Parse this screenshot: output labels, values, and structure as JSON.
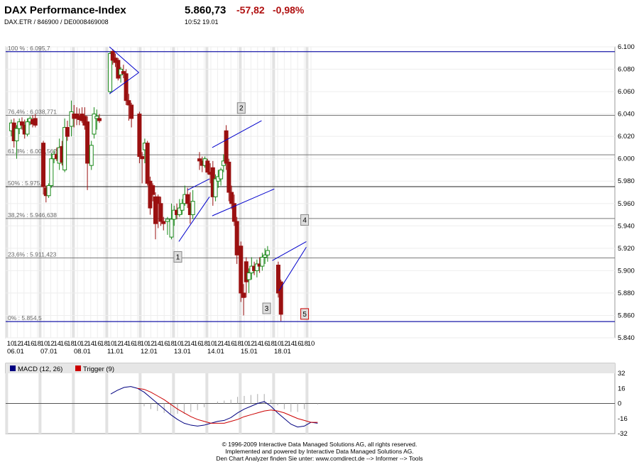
{
  "header": {
    "title": "DAX Performance-Index",
    "subtitle": "DAX.ETR  /  846900  /  DE0008469008",
    "price": "5.860,73",
    "change": "-57,82",
    "change_pct": "-0,98%",
    "time": "10:52   19.01"
  },
  "chart_data": [
    {
      "type": "candlestick",
      "y_ticks": [
        "6.100",
        "6.080",
        "6.060",
        "6.040",
        "6.020",
        "6.000",
        "5.980",
        "5.960",
        "5.940",
        "5.920",
        "5.900",
        "5.880",
        "5.860",
        "5.840"
      ],
      "ylim": [
        5840,
        6100
      ],
      "x_hour_labels": [
        "10",
        "12",
        "14",
        "16",
        "18",
        "10",
        "12",
        "14",
        "16",
        "18",
        "10",
        "12",
        "14",
        "16",
        "18",
        "10",
        "12",
        "14",
        "16",
        "18",
        "10",
        "12",
        "14",
        "16",
        "18",
        "10",
        "12",
        "14",
        "16",
        "18",
        "10",
        "12",
        "14",
        "16",
        "18",
        "10",
        "12",
        "14",
        "16",
        "18",
        "10",
        "12",
        "14",
        "16",
        "18",
        "10"
      ],
      "x_date_labels": [
        {
          "label": "06.01",
          "at": 0
        },
        {
          "label": "07.01",
          "at": 5
        },
        {
          "label": "08.01",
          "at": 10
        },
        {
          "label": "11.01",
          "at": 15
        },
        {
          "label": "12.01",
          "at": 20
        },
        {
          "label": "13.01",
          "at": 25
        },
        {
          "label": "14.01",
          "at": 30
        },
        {
          "label": "15.01",
          "at": 35
        },
        {
          "label": "18.01",
          "at": 40
        }
      ],
      "fib_levels": [
        {
          "label": "100 % : 6.095,7",
          "value": 6095.7
        },
        {
          "label": "76,4% : 6.038,771",
          "value": 6038.771
        },
        {
          "label": "61,8% : 6.003,562",
          "value": 6003.562
        },
        {
          "label": "50% : 5.975,1",
          "value": 5975.1
        },
        {
          "label": "38,2% : 5.946,638",
          "value": 5946.638
        },
        {
          "label": "23,6% : 5.911,423",
          "value": 5911.423
        },
        {
          "label": "0% : 5.854,5",
          "value": 5854.5
        }
      ],
      "markers": [
        {
          "label": "1",
          "x": 25,
          "y": 5912
        },
        {
          "label": "2",
          "x": 34.5,
          "y": 6045
        },
        {
          "label": "3",
          "x": 38.3,
          "y": 5866
        },
        {
          "label": "4",
          "x": 44,
          "y": 5945
        },
        {
          "label": "5",
          "x": 44,
          "y": 5861
        }
      ],
      "trendlines": [
        {
          "x1": 14.8,
          "y1": 6100,
          "x2": 19.2,
          "y2": 6077
        },
        {
          "x1": 14.8,
          "y1": 6058,
          "x2": 19.2,
          "y2": 6077
        },
        {
          "x1": 25.2,
          "y1": 5926,
          "x2": 29.8,
          "y2": 5966
        },
        {
          "x1": 26.5,
          "y1": 5972,
          "x2": 29.8,
          "y2": 5982
        },
        {
          "x1": 30.2,
          "y1": 5949,
          "x2": 39.5,
          "y2": 5973
        },
        {
          "x1": 30.2,
          "y1": 6010,
          "x2": 37.6,
          "y2": 6034
        },
        {
          "x1": 39.2,
          "y1": 5909,
          "x2": 44.3,
          "y2": 5926
        },
        {
          "x1": 40.2,
          "y1": 5882,
          "x2": 44.3,
          "y2": 5921
        }
      ],
      "candles": [
        {
          "x": 0.1,
          "o": 6025,
          "h": 6035,
          "l": 6020,
          "c": 6032
        },
        {
          "x": 0.5,
          "o": 6032,
          "h": 6036,
          "l": 6010,
          "c": 6016
        },
        {
          "x": 0.9,
          "o": 6016,
          "h": 6030,
          "l": 6000,
          "c": 6027
        },
        {
          "x": 1.3,
          "o": 6027,
          "h": 6036,
          "l": 6022,
          "c": 6033
        },
        {
          "x": 1.7,
          "o": 6033,
          "h": 6037,
          "l": 6026,
          "c": 6030
        },
        {
          "x": 2.1,
          "o": 6030,
          "h": 6035,
          "l": 6018,
          "c": 6022
        },
        {
          "x": 2.5,
          "o": 6022,
          "h": 6036,
          "l": 6020,
          "c": 6033
        },
        {
          "x": 2.9,
          "o": 6033,
          "h": 6038,
          "l": 6030,
          "c": 6036
        },
        {
          "x": 3.3,
          "o": 6035,
          "h": 6039,
          "l": 6028,
          "c": 6031
        },
        {
          "x": 3.7,
          "o": 6036,
          "h": 6040,
          "l": 6028,
          "c": 6030
        },
        {
          "x": 4.9,
          "o": 6014,
          "h": 6016,
          "l": 5968,
          "c": 5975
        },
        {
          "x": 5.3,
          "o": 5974,
          "h": 5976,
          "l": 5961,
          "c": 5967
        },
        {
          "x": 5.7,
          "o": 5967,
          "h": 5978,
          "l": 5965,
          "c": 5976
        },
        {
          "x": 6.1,
          "o": 5976,
          "h": 6005,
          "l": 5974,
          "c": 6000
        },
        {
          "x": 6.5,
          "o": 6000,
          "h": 6008,
          "l": 5996,
          "c": 6004
        },
        {
          "x": 6.9,
          "o": 6004,
          "h": 6010,
          "l": 5998,
          "c": 6000
        },
        {
          "x": 7.3,
          "o": 5996,
          "h": 6018,
          "l": 5990,
          "c": 6010
        },
        {
          "x": 7.7,
          "o": 6011,
          "h": 6016,
          "l": 5994,
          "c": 5997
        },
        {
          "x": 8.1,
          "o": 5990,
          "h": 6036,
          "l": 5988,
          "c": 6028
        },
        {
          "x": 8.5,
          "o": 6028,
          "h": 6034,
          "l": 6016,
          "c": 6020
        },
        {
          "x": 9.1,
          "o": 6029,
          "h": 6052,
          "l": 6020,
          "c": 6042
        },
        {
          "x": 9.5,
          "o": 6040,
          "h": 6048,
          "l": 6028,
          "c": 6036
        },
        {
          "x": 9.9,
          "o": 6040,
          "h": 6046,
          "l": 6030,
          "c": 6036
        },
        {
          "x": 10.3,
          "o": 6038,
          "h": 6045,
          "l": 6030,
          "c": 6035
        },
        {
          "x": 10.7,
          "o": 6040,
          "h": 6046,
          "l": 6032,
          "c": 6034
        },
        {
          "x": 11.1,
          "o": 6038,
          "h": 6046,
          "l": 6026,
          "c": 6030
        },
        {
          "x": 11.5,
          "o": 6033,
          "h": 6038,
          "l": 5972,
          "c": 5996
        },
        {
          "x": 12.1,
          "o": 5994,
          "h": 6016,
          "l": 5990,
          "c": 6012
        },
        {
          "x": 12.5,
          "o": 6022,
          "h": 6046,
          "l": 6018,
          "c": 6040
        },
        {
          "x": 12.9,
          "o": 6036,
          "h": 6044,
          "l": 6026,
          "c": 6038
        },
        {
          "x": 13.3,
          "o": 6036,
          "h": 6040,
          "l": 6032,
          "c": 6034
        },
        {
          "x": 14.9,
          "o": 6060,
          "h": 6096,
          "l": 6058,
          "c": 6094
        },
        {
          "x": 15.3,
          "o": 6096,
          "h": 6098,
          "l": 6084,
          "c": 6088
        },
        {
          "x": 15.7,
          "o": 6090,
          "h": 6094,
          "l": 6082,
          "c": 6086
        },
        {
          "x": 16.1,
          "o": 6088,
          "h": 6090,
          "l": 6070,
          "c": 6072
        },
        {
          "x": 16.5,
          "o": 6075,
          "h": 6082,
          "l": 6068,
          "c": 6080
        },
        {
          "x": 16.9,
          "o": 6078,
          "h": 6084,
          "l": 6072,
          "c": 6076
        },
        {
          "x": 17.3,
          "o": 6076,
          "h": 6080,
          "l": 6048,
          "c": 6052
        },
        {
          "x": 17.7,
          "o": 6052,
          "h": 6058,
          "l": 6034,
          "c": 6048
        },
        {
          "x": 18.1,
          "o": 6048,
          "h": 6050,
          "l": 6028,
          "c": 6036
        },
        {
          "x": 19.3,
          "o": 6040,
          "h": 6042,
          "l": 5996,
          "c": 6002
        },
        {
          "x": 19.7,
          "o": 6002,
          "h": 6006,
          "l": 5978,
          "c": 6000
        },
        {
          "x": 20.1,
          "o": 6008,
          "h": 6018,
          "l": 5996,
          "c": 6014
        },
        {
          "x": 20.5,
          "o": 6014,
          "h": 6016,
          "l": 5976,
          "c": 5978
        },
        {
          "x": 20.9,
          "o": 5980,
          "h": 5984,
          "l": 5950,
          "c": 5956
        },
        {
          "x": 21.3,
          "o": 5976,
          "h": 5978,
          "l": 5962,
          "c": 5968
        },
        {
          "x": 21.7,
          "o": 5966,
          "h": 5970,
          "l": 5928,
          "c": 5942
        },
        {
          "x": 22.1,
          "o": 5966,
          "h": 5968,
          "l": 5938,
          "c": 5960
        },
        {
          "x": 22.5,
          "o": 5960,
          "h": 5966,
          "l": 5940,
          "c": 5944
        },
        {
          "x": 22.9,
          "o": 5944,
          "h": 5948,
          "l": 5936,
          "c": 5942
        },
        {
          "x": 23.5,
          "o": 5944,
          "h": 5948,
          "l": 5932,
          "c": 5946
        },
        {
          "x": 24.1,
          "o": 5930,
          "h": 5960,
          "l": 5928,
          "c": 5946
        },
        {
          "x": 24.5,
          "o": 5946,
          "h": 5958,
          "l": 5940,
          "c": 5954
        },
        {
          "x": 24.9,
          "o": 5954,
          "h": 5960,
          "l": 5946,
          "c": 5950
        },
        {
          "x": 25.3,
          "o": 5950,
          "h": 5964,
          "l": 5948,
          "c": 5956
        },
        {
          "x": 25.7,
          "o": 5954,
          "h": 5964,
          "l": 5950,
          "c": 5960
        },
        {
          "x": 26.1,
          "o": 5960,
          "h": 5976,
          "l": 5958,
          "c": 5968
        },
        {
          "x": 26.5,
          "o": 5968,
          "h": 5974,
          "l": 5956,
          "c": 5960
        },
        {
          "x": 26.9,
          "o": 5960,
          "h": 5970,
          "l": 5942,
          "c": 5950
        },
        {
          "x": 27.3,
          "o": 5950,
          "h": 5972,
          "l": 5946,
          "c": 5962
        },
        {
          "x": 28.3,
          "o": 6000,
          "h": 6006,
          "l": 5990,
          "c": 5998
        },
        {
          "x": 28.7,
          "o": 5998,
          "h": 6002,
          "l": 5988,
          "c": 5994
        },
        {
          "x": 29.1,
          "o": 5994,
          "h": 6002,
          "l": 5992,
          "c": 6000
        },
        {
          "x": 29.5,
          "o": 5998,
          "h": 6000,
          "l": 5986,
          "c": 5988
        },
        {
          "x": 29.9,
          "o": 5988,
          "h": 5996,
          "l": 5978,
          "c": 5986
        },
        {
          "x": 30.3,
          "o": 5992,
          "h": 5998,
          "l": 5958,
          "c": 5966
        },
        {
          "x": 30.7,
          "o": 5966,
          "h": 5986,
          "l": 5962,
          "c": 5982
        },
        {
          "x": 31.1,
          "o": 5980,
          "h": 5990,
          "l": 5974,
          "c": 5984
        },
        {
          "x": 31.5,
          "o": 5982,
          "h": 5992,
          "l": 5976,
          "c": 5990
        },
        {
          "x": 31.9,
          "o": 5994,
          "h": 6004,
          "l": 5988,
          "c": 5998
        },
        {
          "x": 32.3,
          "o": 6025,
          "h": 6030,
          "l": 5990,
          "c": 5996
        },
        {
          "x": 32.7,
          "o": 5997,
          "h": 6000,
          "l": 5962,
          "c": 5970
        },
        {
          "x": 33.1,
          "o": 5970,
          "h": 5976,
          "l": 5955,
          "c": 5960
        },
        {
          "x": 33.5,
          "o": 5960,
          "h": 5968,
          "l": 5940,
          "c": 5944
        },
        {
          "x": 33.9,
          "o": 5944,
          "h": 5948,
          "l": 5906,
          "c": 5914
        },
        {
          "x": 34.5,
          "o": 5922,
          "h": 5926,
          "l": 5872,
          "c": 5880
        },
        {
          "x": 34.9,
          "o": 5880,
          "h": 5888,
          "l": 5860,
          "c": 5876
        },
        {
          "x": 35.3,
          "o": 5908,
          "h": 5912,
          "l": 5876,
          "c": 5890
        },
        {
          "x": 35.7,
          "o": 5892,
          "h": 5902,
          "l": 5880,
          "c": 5898
        },
        {
          "x": 36.1,
          "o": 5898,
          "h": 5912,
          "l": 5892,
          "c": 5904
        },
        {
          "x": 36.5,
          "o": 5904,
          "h": 5908,
          "l": 5896,
          "c": 5900
        },
        {
          "x": 36.9,
          "o": 5900,
          "h": 5910,
          "l": 5894,
          "c": 5906
        },
        {
          "x": 37.3,
          "o": 5906,
          "h": 5912,
          "l": 5898,
          "c": 5904
        },
        {
          "x": 37.7,
          "o": 5904,
          "h": 5916,
          "l": 5900,
          "c": 5912
        },
        {
          "x": 38.1,
          "o": 5912,
          "h": 5920,
          "l": 5906,
          "c": 5914
        },
        {
          "x": 38.5,
          "o": 5914,
          "h": 5922,
          "l": 5908,
          "c": 5918
        },
        {
          "x": 40.1,
          "o": 5905,
          "h": 5908,
          "l": 5876,
          "c": 5880
        },
        {
          "x": 40.5,
          "o": 5890,
          "h": 5892,
          "l": 5855,
          "c": 5861
        }
      ]
    },
    {
      "type": "line",
      "ylim": [
        -32,
        32
      ],
      "y_ticks": [
        "32",
        "16",
        "0",
        "-16",
        "-32"
      ],
      "series": [
        {
          "name": "MACD (12, 26)",
          "color": "#000080",
          "x": [
            15,
            16,
            17,
            18,
            19,
            20,
            21,
            22,
            23,
            24,
            25,
            26,
            27,
            28,
            29,
            30,
            31,
            32,
            33,
            34,
            35,
            36,
            37,
            38,
            39,
            40,
            41,
            42,
            43,
            44,
            45,
            46
          ],
          "values": [
            10,
            14,
            17,
            18,
            16,
            12,
            6,
            0,
            -6,
            -12,
            -17,
            -21,
            -23,
            -24,
            -23,
            -21,
            -19,
            -18,
            -15,
            -10,
            -6,
            -3,
            0,
            2,
            -3,
            -10,
            -16,
            -22,
            -25,
            -24,
            -20,
            -21
          ]
        },
        {
          "name": "Trigger (9)",
          "color": "#cc0000",
          "x": [
            19,
            20,
            21,
            22,
            23,
            24,
            25,
            26,
            27,
            28,
            29,
            30,
            31,
            32,
            33,
            34,
            35,
            36,
            37,
            38,
            39,
            40,
            41,
            42,
            43,
            44,
            45,
            46
          ],
          "values": [
            16,
            15,
            12,
            8,
            4,
            -1,
            -6,
            -10,
            -14,
            -17,
            -19,
            -21,
            -21,
            -21,
            -19,
            -17,
            -14,
            -12,
            -10,
            -8,
            -7,
            -8,
            -10,
            -13,
            -16,
            -18,
            -20,
            -20
          ]
        }
      ]
    }
  ],
  "footer": {
    "line1": "© 1996-2009 Interactive Data Managed Solutions AG, all rights reserved.",
    "line2": "Implemented and powered by  Interactive Data Managed Solutions AG.",
    "line3": "Den Chart Analyzer finden Sie unter: www.comdirect.de --> Informer --> Tools"
  },
  "colors": {
    "up": "#1a8a1a",
    "down": "#9a1010",
    "trend": "#0000cc",
    "fib": "#777777"
  }
}
